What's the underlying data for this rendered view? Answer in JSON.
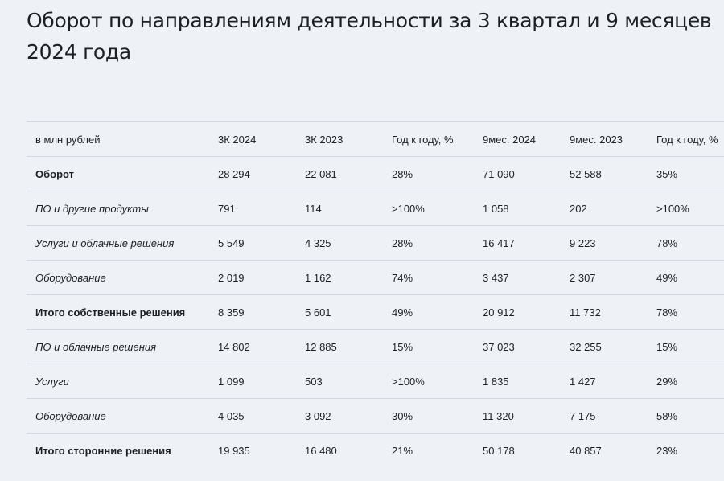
{
  "title": "Оборот по направлениям деятельности за 3 квартал и 9 месяцев 2024 года",
  "table": {
    "headers": [
      "в млн рублей",
      "3К 2024",
      "3К 2023",
      "Год к году, %",
      "9мес. 2024",
      "9мес. 2023",
      "Год к году, %"
    ],
    "rows": [
      {
        "label": "Оборот",
        "style": "bold",
        "values": [
          "28 294",
          "22 081",
          "28%",
          "71 090",
          "52 588",
          "35%"
        ]
      },
      {
        "label": "ПО и другие продукты",
        "style": "italic",
        "values": [
          "791",
          "114",
          ">100%",
          "1 058",
          "202",
          ">100%"
        ]
      },
      {
        "label": "Услуги и облачные решения",
        "style": "italic",
        "values": [
          "5 549",
          "4 325",
          "28%",
          "16 417",
          "9 223",
          "78%"
        ]
      },
      {
        "label": "Оборудование",
        "style": "italic",
        "values": [
          "2 019",
          "1 162",
          "74%",
          "3 437",
          "2 307",
          "49%"
        ]
      },
      {
        "label": "Итого собственные решения",
        "style": "bold",
        "values": [
          "8 359",
          "5 601",
          "49%",
          "20 912",
          "11 732",
          "78%"
        ]
      },
      {
        "label": "ПО и облачные решения",
        "style": "italic",
        "values": [
          "14 802",
          "12 885",
          "15%",
          "37 023",
          "32 255",
          "15%"
        ]
      },
      {
        "label": "Услуги",
        "style": "italic",
        "values": [
          "1 099",
          "503",
          ">100%",
          "1 835",
          "1 427",
          "29%"
        ]
      },
      {
        "label": "Оборудование",
        "style": "italic",
        "values": [
          "4 035",
          "3 092",
          "30%",
          "11 320",
          "7 175",
          "58%"
        ]
      },
      {
        "label": "Итого сторонние решения",
        "style": "bold",
        "values": [
          "19 935",
          "16 480",
          "21%",
          "50 178",
          "40 857",
          "23%"
        ]
      }
    ]
  }
}
